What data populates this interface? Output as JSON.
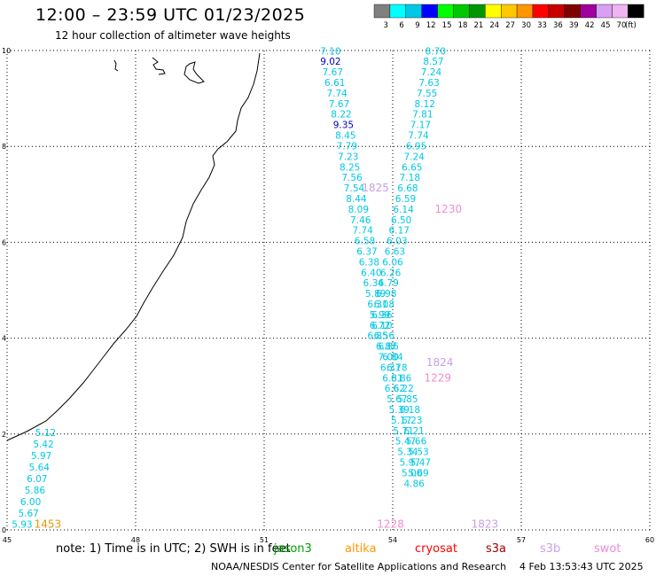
{
  "header": {
    "title": "12:00 – 23:59 UTC 01/23/2025",
    "subtitle": "12 hour collection of altimeter wave heights"
  },
  "legend": {
    "unit": "(ft)",
    "bins": [
      {
        "label": "3",
        "color": "#808080"
      },
      {
        "label": "6",
        "color": "#00ffff"
      },
      {
        "label": "9",
        "color": "#00c8e6"
      },
      {
        "label": "12",
        "color": "#0000ff"
      },
      {
        "label": "15",
        "color": "#00ff00"
      },
      {
        "label": "18",
        "color": "#00c800"
      },
      {
        "label": "21",
        "color": "#009600"
      },
      {
        "label": "24",
        "color": "#ffff00"
      },
      {
        "label": "27",
        "color": "#ffc800"
      },
      {
        "label": "30",
        "color": "#ff9600"
      },
      {
        "label": "33",
        "color": "#ff0000"
      },
      {
        "label": "36",
        "color": "#c80000"
      },
      {
        "label": "39",
        "color": "#800000"
      },
      {
        "label": "42",
        "color": "#a000a0"
      },
      {
        "label": "45",
        "color": "#d7a0f0"
      },
      {
        "label": "70",
        "color": "#f0b4f0"
      },
      {
        "label": "",
        "color": "#000000"
      }
    ]
  },
  "axes": {
    "x_range": [
      45,
      60
    ],
    "y_range": [
      0,
      10
    ],
    "x_ticks": [
      "45",
      "48",
      "51",
      "54",
      "57",
      "60"
    ],
    "y_ticks": [
      "0",
      "2",
      "4",
      "6",
      "8",
      "10"
    ]
  },
  "track_colors": {
    "cyan": "#00c8e6",
    "blue": "#0000c8",
    "navy": "#0000ff"
  },
  "tracks": [
    {
      "color": "cyan",
      "points": [
        {
          "lon": 45.35,
          "lat": 0.05,
          "text": "5.93"
        },
        {
          "lon": 45.5,
          "lat": 0.28,
          "text": "5.67"
        },
        {
          "lon": 45.55,
          "lat": 0.52,
          "text": "6.00"
        },
        {
          "lon": 45.65,
          "lat": 0.76,
          "text": "5.86"
        },
        {
          "lon": 45.7,
          "lat": 1.0,
          "text": "6.07"
        },
        {
          "lon": 45.75,
          "lat": 1.24,
          "text": "5.64"
        },
        {
          "lon": 45.8,
          "lat": 1.48,
          "text": "5.97"
        },
        {
          "lon": 45.85,
          "lat": 1.72,
          "text": "5.42"
        },
        {
          "lon": 45.9,
          "lat": 1.96,
          "text": "5.12"
        }
      ]
    },
    {
      "color": "cyan",
      "points": [
        {
          "lon": 52.55,
          "lat": 9.92,
          "text": "7.10"
        },
        {
          "lon": 52.6,
          "lat": 9.48,
          "text": "7.67"
        },
        {
          "lon": 52.65,
          "lat": 9.26,
          "text": "6.61"
        },
        {
          "lon": 52.7,
          "lat": 9.04,
          "text": "7.74"
        },
        {
          "lon": 52.75,
          "lat": 8.82,
          "text": "7.67"
        },
        {
          "lon": 52.8,
          "lat": 8.6,
          "text": "8.22"
        },
        {
          "lon": 52.9,
          "lat": 8.16,
          "text": "8.45"
        },
        {
          "lon": 52.93,
          "lat": 7.94,
          "text": "7.79"
        },
        {
          "lon": 52.96,
          "lat": 7.72,
          "text": "7.23"
        },
        {
          "lon": 53.0,
          "lat": 7.5,
          "text": "8.25"
        },
        {
          "lon": 53.05,
          "lat": 7.28,
          "text": "7.56"
        },
        {
          "lon": 53.1,
          "lat": 7.06,
          "text": "7.54"
        },
        {
          "lon": 53.15,
          "lat": 6.84,
          "text": "8.44"
        },
        {
          "lon": 53.2,
          "lat": 6.62,
          "text": "8.09"
        },
        {
          "lon": 53.25,
          "lat": 6.4,
          "text": "7.46"
        },
        {
          "lon": 53.3,
          "lat": 6.18,
          "text": "7.74"
        },
        {
          "lon": 53.35,
          "lat": 5.96,
          "text": "6.58"
        },
        {
          "lon": 53.4,
          "lat": 5.74,
          "text": "6.37"
        },
        {
          "lon": 53.45,
          "lat": 5.52,
          "text": "6.38"
        },
        {
          "lon": 53.5,
          "lat": 5.3,
          "text": "6.40"
        },
        {
          "lon": 53.55,
          "lat": 5.08,
          "text": "6.34"
        },
        {
          "lon": 53.6,
          "lat": 4.86,
          "text": "5.89"
        },
        {
          "lon": 53.65,
          "lat": 4.64,
          "text": "6.31"
        },
        {
          "lon": 53.7,
          "lat": 4.42,
          "text": "5.99"
        },
        {
          "lon": 53.75,
          "lat": 4.2,
          "text": "6.10"
        },
        {
          "lon": 53.8,
          "lat": 3.98,
          "text": "6.56"
        },
        {
          "lon": 53.85,
          "lat": 3.76,
          "text": "6.87"
        },
        {
          "lon": 53.9,
          "lat": 3.54,
          "text": "7.00"
        },
        {
          "lon": 53.95,
          "lat": 3.32,
          "text": "6.31"
        },
        {
          "lon": 54.0,
          "lat": 3.1,
          "text": "6.31"
        },
        {
          "lon": 54.05,
          "lat": 2.88,
          "text": "6.62"
        },
        {
          "lon": 54.1,
          "lat": 2.66,
          "text": "5.67"
        },
        {
          "lon": 54.15,
          "lat": 2.44,
          "text": "5.39"
        },
        {
          "lon": 54.2,
          "lat": 2.22,
          "text": "5.17"
        },
        {
          "lon": 54.25,
          "lat": 2.0,
          "text": "5.71"
        },
        {
          "lon": 54.3,
          "lat": 1.78,
          "text": "5.47"
        },
        {
          "lon": 54.35,
          "lat": 1.56,
          "text": "5.34"
        },
        {
          "lon": 54.4,
          "lat": 1.34,
          "text": "5.97"
        },
        {
          "lon": 54.45,
          "lat": 1.12,
          "text": "5.00"
        },
        {
          "lon": 54.5,
          "lat": 0.9,
          "text": "4.86"
        }
      ]
    },
    {
      "color": "blue",
      "points": [
        {
          "lon": 52.55,
          "lat": 9.7,
          "text": "9.02"
        },
        {
          "lon": 52.85,
          "lat": 8.38,
          "text": "9.35"
        }
      ]
    },
    {
      "color": "cyan",
      "points": [
        {
          "lon": 55.0,
          "lat": 9.92,
          "text": "8.70"
        },
        {
          "lon": 54.95,
          "lat": 9.7,
          "text": "8.57"
        },
        {
          "lon": 54.9,
          "lat": 9.48,
          "text": "7.24"
        },
        {
          "lon": 54.85,
          "lat": 9.26,
          "text": "7.63"
        },
        {
          "lon": 54.8,
          "lat": 9.04,
          "text": "7.55"
        },
        {
          "lon": 54.75,
          "lat": 8.82,
          "text": "8.12"
        },
        {
          "lon": 54.7,
          "lat": 8.6,
          "text": "7.81"
        },
        {
          "lon": 54.65,
          "lat": 8.38,
          "text": "7.17"
        },
        {
          "lon": 54.6,
          "lat": 8.16,
          "text": "7.74"
        },
        {
          "lon": 54.55,
          "lat": 7.94,
          "text": "6.95"
        },
        {
          "lon": 54.5,
          "lat": 7.72,
          "text": "7.24"
        },
        {
          "lon": 54.45,
          "lat": 7.5,
          "text": "6.65"
        },
        {
          "lon": 54.4,
          "lat": 7.28,
          "text": "7.18"
        },
        {
          "lon": 54.35,
          "lat": 7.06,
          "text": "6.68"
        },
        {
          "lon": 54.3,
          "lat": 6.84,
          "text": "6.59"
        },
        {
          "lon": 54.25,
          "lat": 6.62,
          "text": "6.14"
        },
        {
          "lon": 54.2,
          "lat": 6.4,
          "text": "6.50"
        },
        {
          "lon": 54.15,
          "lat": 6.18,
          "text": "6.17"
        },
        {
          "lon": 54.1,
          "lat": 5.96,
          "text": "6.03"
        },
        {
          "lon": 54.05,
          "lat": 5.74,
          "text": "6.63"
        },
        {
          "lon": 54.0,
          "lat": 5.52,
          "text": "6.06"
        },
        {
          "lon": 53.95,
          "lat": 5.3,
          "text": "6.26"
        },
        {
          "lon": 53.9,
          "lat": 5.08,
          "text": "6.79"
        },
        {
          "lon": 53.85,
          "lat": 4.86,
          "text": "6.98"
        },
        {
          "lon": 53.8,
          "lat": 4.64,
          "text": "6.08"
        },
        {
          "lon": 53.75,
          "lat": 4.42,
          "text": "6.36"
        },
        {
          "lon": 53.7,
          "lat": 4.2,
          "text": "6.72"
        },
        {
          "lon": 53.65,
          "lat": 3.98,
          "text": "6.85"
        },
        {
          "lon": 53.9,
          "lat": 3.76,
          "text": "6.86"
        },
        {
          "lon": 54.0,
          "lat": 3.54,
          "text": "6.84"
        },
        {
          "lon": 54.1,
          "lat": 3.32,
          "text": "6.78"
        },
        {
          "lon": 54.2,
          "lat": 3.1,
          "text": "6.86"
        },
        {
          "lon": 54.25,
          "lat": 2.88,
          "text": "6.22"
        },
        {
          "lon": 54.35,
          "lat": 2.66,
          "text": "5.85"
        },
        {
          "lon": 54.4,
          "lat": 2.44,
          "text": "6.18"
        },
        {
          "lon": 54.45,
          "lat": 2.22,
          "text": "6.23"
        },
        {
          "lon": 54.5,
          "lat": 2.0,
          "text": "6.21"
        },
        {
          "lon": 54.55,
          "lat": 1.78,
          "text": "5.66"
        },
        {
          "lon": 54.6,
          "lat": 1.56,
          "text": "5.53"
        },
        {
          "lon": 54.65,
          "lat": 1.34,
          "text": "5.47"
        },
        {
          "lon": 54.6,
          "lat": 1.12,
          "text": "5.69"
        }
      ]
    }
  ],
  "time_labels": [
    {
      "lon": 45.95,
      "lat": 0.05,
      "text": "1453",
      "color": "#e89600"
    },
    {
      "lon": 53.6,
      "lat": 7.06,
      "text": "1825",
      "color": "#c8a0e6"
    },
    {
      "lon": 55.3,
      "lat": 6.62,
      "text": "1230",
      "color": "#f08cd2"
    },
    {
      "lon": 55.1,
      "lat": 3.42,
      "text": "1824",
      "color": "#c8a0e6"
    },
    {
      "lon": 55.05,
      "lat": 3.1,
      "text": "1229",
      "color": "#f08cd2"
    },
    {
      "lon": 53.95,
      "lat": 0.05,
      "text": "1228",
      "color": "#f08cd2"
    },
    {
      "lon": 56.15,
      "lat": 0.05,
      "text": "1823",
      "color": "#c8a0e6"
    }
  ],
  "missions": [
    {
      "name": "jason3",
      "color": "#00a000"
    },
    {
      "name": "altika",
      "color": "#ff9600"
    },
    {
      "name": "cryosat",
      "color": "#ff0000"
    },
    {
      "name": "s3a",
      "color": "#a00000"
    },
    {
      "name": "s3b",
      "color": "#c8a0e6"
    },
    {
      "name": "swot",
      "color": "#f08cd2"
    }
  ],
  "note": "note:  1) Time is in UTC; 2) SWH is in feet",
  "footer": {
    "agency": "NOAA/NESDIS Center for Satellite Applications and Research",
    "timestamp": "4 Feb 13:53:43 UTC 2025"
  }
}
